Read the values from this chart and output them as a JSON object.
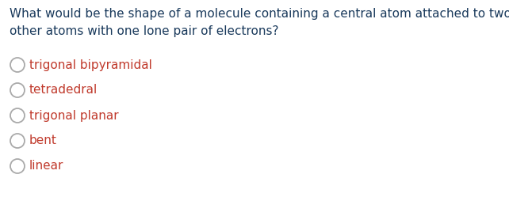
{
  "question_lines": [
    "What would be the shape of a molecule containing a central atom attached to two",
    "other atoms with one lone pair of electrons?"
  ],
  "options": [
    "trigonal bipyramidal",
    "tetradedral",
    "trigonal planar",
    "bent",
    "linear"
  ],
  "question_color": "#1a3a5c",
  "option_color": "#c0392b",
  "background_color": "#ffffff",
  "question_fontsize": 11.0,
  "option_fontsize": 11.0,
  "circle_color": "#aaaaaa",
  "fig_width": 6.42,
  "fig_height": 2.49,
  "dpi": 100
}
